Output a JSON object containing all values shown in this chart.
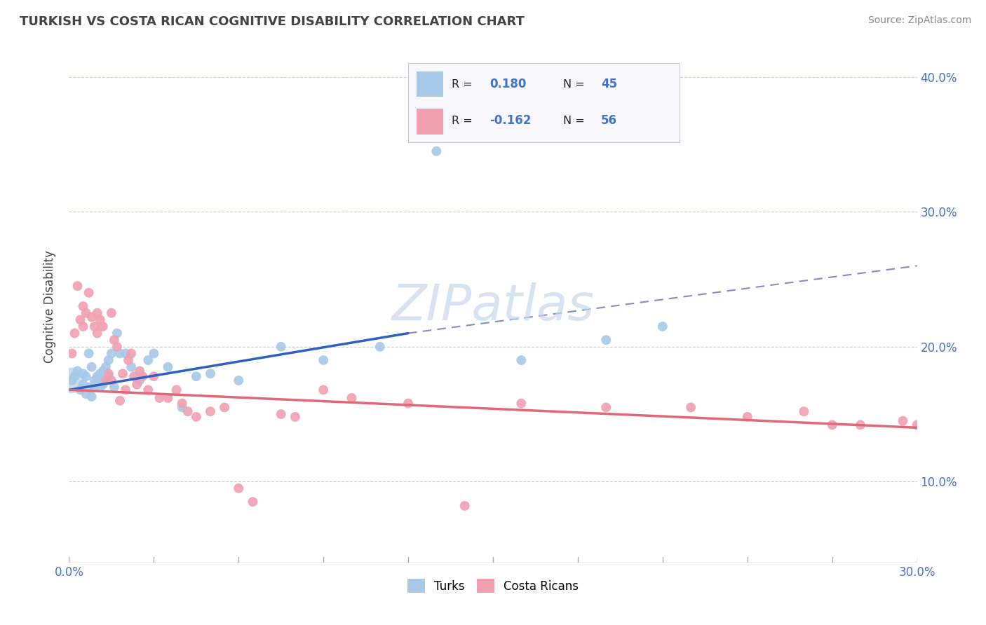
{
  "title": "TURKISH VS COSTA RICAN COGNITIVE DISABILITY CORRELATION CHART",
  "source": "Source: ZipAtlas.com",
  "ylabel": "Cognitive Disability",
  "xlim": [
    0.0,
    0.3
  ],
  "ylim": [
    0.04,
    0.42
  ],
  "yticks": [
    0.1,
    0.2,
    0.3,
    0.4
  ],
  "ytick_labels": [
    "10.0%",
    "20.0%",
    "30.0%",
    "40.0%"
  ],
  "turks_R": 0.18,
  "turks_N": 45,
  "costaricans_R": -0.162,
  "costaricans_N": 56,
  "blue_color": "#a8c8e8",
  "pink_color": "#f0a0b0",
  "blue_line_color": "#3060c0",
  "pink_line_color": "#e06878",
  "dashed_line_color": "#8888cc",
  "watermark_color": "#c8d8ec",
  "legend_label_turks": "Turks",
  "legend_label_costa": "Costa Ricans",
  "blue_line_x0": 0.0,
  "blue_line_y0": 0.168,
  "blue_line_x1": 0.12,
  "blue_line_y1": 0.21,
  "dashed_line_x0": 0.12,
  "dashed_line_y0": 0.21,
  "dashed_line_x1": 0.3,
  "dashed_line_y1": 0.26,
  "pink_line_x0": 0.0,
  "pink_line_y0": 0.168,
  "pink_line_x1": 0.3,
  "pink_line_y1": 0.14,
  "turks_x": [
    0.001,
    0.002,
    0.003,
    0.004,
    0.005,
    0.005,
    0.006,
    0.006,
    0.007,
    0.007,
    0.008,
    0.008,
    0.009,
    0.009,
    0.01,
    0.01,
    0.011,
    0.011,
    0.012,
    0.012,
    0.013,
    0.013,
    0.014,
    0.014,
    0.015,
    0.016,
    0.017,
    0.018,
    0.02,
    0.022,
    0.025,
    0.028,
    0.03,
    0.035,
    0.04,
    0.045,
    0.05,
    0.06,
    0.075,
    0.09,
    0.11,
    0.13,
    0.16,
    0.19,
    0.21
  ],
  "turks_y": [
    0.175,
    0.178,
    0.182,
    0.168,
    0.172,
    0.18,
    0.165,
    0.178,
    0.195,
    0.17,
    0.163,
    0.185,
    0.17,
    0.175,
    0.173,
    0.178,
    0.18,
    0.17,
    0.172,
    0.182,
    0.175,
    0.185,
    0.178,
    0.19,
    0.195,
    0.17,
    0.21,
    0.195,
    0.195,
    0.185,
    0.175,
    0.19,
    0.195,
    0.185,
    0.155,
    0.178,
    0.18,
    0.175,
    0.2,
    0.19,
    0.2,
    0.345,
    0.19,
    0.205,
    0.215
  ],
  "costa_x": [
    0.001,
    0.002,
    0.003,
    0.004,
    0.005,
    0.005,
    0.006,
    0.007,
    0.008,
    0.009,
    0.01,
    0.01,
    0.011,
    0.012,
    0.013,
    0.014,
    0.015,
    0.015,
    0.016,
    0.017,
    0.018,
    0.019,
    0.02,
    0.021,
    0.022,
    0.023,
    0.024,
    0.025,
    0.026,
    0.028,
    0.03,
    0.032,
    0.035,
    0.038,
    0.04,
    0.042,
    0.045,
    0.05,
    0.055,
    0.06,
    0.065,
    0.075,
    0.08,
    0.09,
    0.1,
    0.12,
    0.14,
    0.16,
    0.19,
    0.22,
    0.24,
    0.26,
    0.27,
    0.28,
    0.295,
    0.3
  ],
  "costa_y": [
    0.195,
    0.21,
    0.245,
    0.22,
    0.23,
    0.215,
    0.225,
    0.24,
    0.222,
    0.215,
    0.225,
    0.21,
    0.22,
    0.215,
    0.175,
    0.18,
    0.225,
    0.175,
    0.205,
    0.2,
    0.16,
    0.18,
    0.168,
    0.19,
    0.195,
    0.178,
    0.172,
    0.182,
    0.178,
    0.168,
    0.178,
    0.162,
    0.162,
    0.168,
    0.158,
    0.152,
    0.148,
    0.152,
    0.155,
    0.095,
    0.085,
    0.15,
    0.148,
    0.168,
    0.162,
    0.158,
    0.082,
    0.158,
    0.155,
    0.155,
    0.148,
    0.152,
    0.142,
    0.142,
    0.145,
    0.142
  ]
}
